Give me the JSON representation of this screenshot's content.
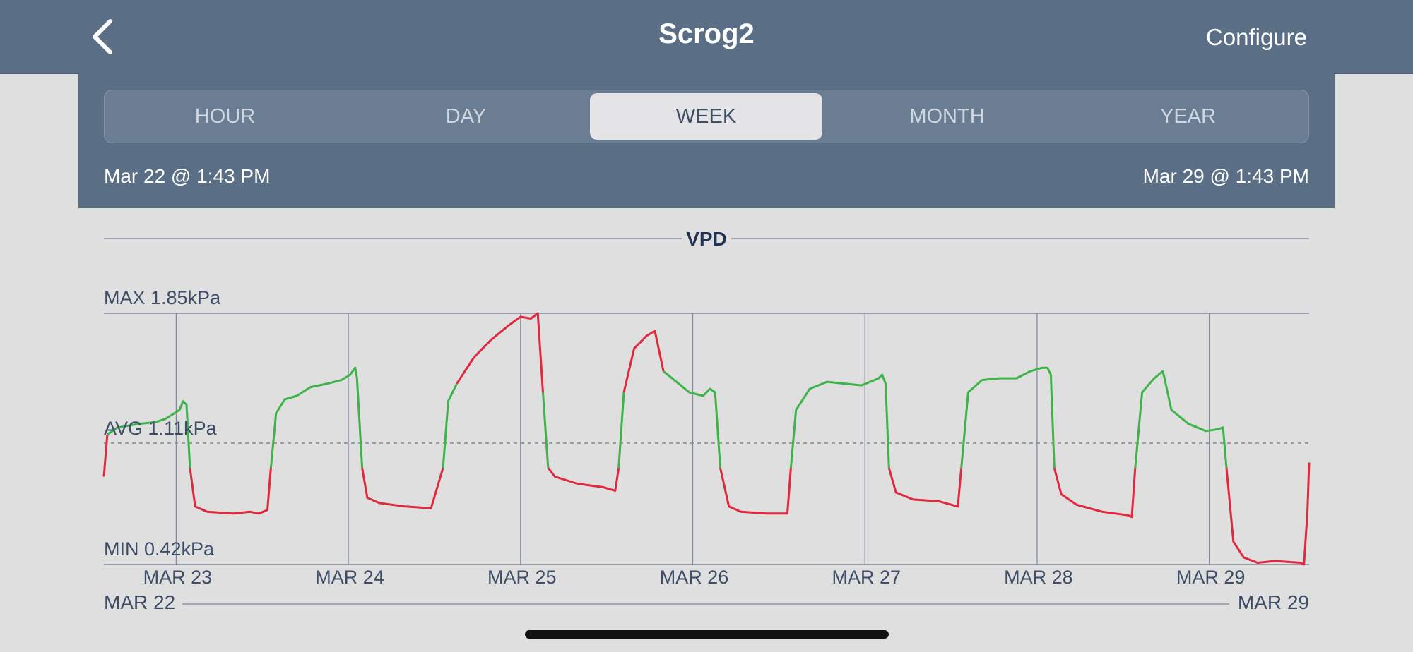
{
  "header": {
    "title": "Scrog2",
    "configure_label": "Configure"
  },
  "tabs": [
    {
      "label": "HOUR",
      "selected": false
    },
    {
      "label": "DAY",
      "selected": false
    },
    {
      "label": "WEEK",
      "selected": true
    },
    {
      "label": "MONTH",
      "selected": false
    },
    {
      "label": "YEAR",
      "selected": false
    }
  ],
  "range": {
    "start": "Mar 22 @ 1:43 PM",
    "end": "Mar 29 @ 1:43 PM"
  },
  "colors": {
    "header_bg": "#5a6e85",
    "in_range": "#3db34a",
    "out_of_range": "#e0283e"
  },
  "chart_data": {
    "type": "line",
    "title": "VPD",
    "max_label": "MAX 1.85kPa",
    "avg_label": "AVG 1.11kPa",
    "min_label": "MIN 0.42kPa",
    "ylim": [
      0.42,
      1.85
    ],
    "avg": 1.11,
    "green_band": [
      0.97,
      1.55
    ],
    "x_ticks": [
      "MAR 23",
      "MAR 24",
      "MAR 25",
      "MAR 26",
      "MAR 27",
      "MAR 28",
      "MAR 29"
    ],
    "range_start_label": "MAR 22",
    "range_end_label": "MAR 29",
    "x_range_days": [
      0,
      7
    ],
    "series": [
      {
        "points": [
          [
            0.0,
            0.92
          ],
          [
            0.02,
            1.16
          ],
          [
            0.08,
            1.2
          ],
          [
            0.2,
            1.22
          ],
          [
            0.3,
            1.23
          ],
          [
            0.36,
            1.25
          ],
          [
            0.44,
            1.3
          ],
          [
            0.46,
            1.35
          ],
          [
            0.48,
            1.33
          ],
          [
            0.5,
            0.97
          ],
          [
            0.53,
            0.75
          ],
          [
            0.6,
            0.72
          ],
          [
            0.75,
            0.71
          ],
          [
            0.85,
            0.72
          ],
          [
            0.9,
            0.71
          ],
          [
            0.95,
            0.73
          ],
          [
            0.97,
            0.97
          ],
          [
            1.0,
            1.28
          ],
          [
            1.05,
            1.36
          ],
          [
            1.12,
            1.38
          ],
          [
            1.2,
            1.43
          ],
          [
            1.3,
            1.45
          ],
          [
            1.38,
            1.47
          ],
          [
            1.43,
            1.5
          ],
          [
            1.46,
            1.54
          ],
          [
            1.47,
            1.48
          ],
          [
            1.5,
            0.97
          ],
          [
            1.53,
            0.8
          ],
          [
            1.6,
            0.77
          ],
          [
            1.75,
            0.75
          ],
          [
            1.9,
            0.74
          ],
          [
            1.97,
            0.97
          ],
          [
            2.0,
            1.35
          ],
          [
            2.05,
            1.45
          ],
          [
            2.15,
            1.6
          ],
          [
            2.25,
            1.7
          ],
          [
            2.35,
            1.78
          ],
          [
            2.42,
            1.83
          ],
          [
            2.48,
            1.82
          ],
          [
            2.52,
            1.85
          ],
          [
            2.55,
            1.4
          ],
          [
            2.58,
            0.97
          ],
          [
            2.62,
            0.92
          ],
          [
            2.75,
            0.88
          ],
          [
            2.9,
            0.86
          ],
          [
            2.97,
            0.84
          ],
          [
            2.99,
            0.97
          ],
          [
            3.02,
            1.4
          ],
          [
            3.08,
            1.65
          ],
          [
            3.15,
            1.72
          ],
          [
            3.2,
            1.75
          ],
          [
            3.25,
            1.52
          ],
          [
            3.3,
            1.48
          ],
          [
            3.4,
            1.4
          ],
          [
            3.48,
            1.38
          ],
          [
            3.52,
            1.42
          ],
          [
            3.55,
            1.4
          ],
          [
            3.58,
            0.97
          ],
          [
            3.63,
            0.75
          ],
          [
            3.7,
            0.72
          ],
          [
            3.85,
            0.71
          ],
          [
            3.97,
            0.71
          ],
          [
            3.99,
            0.97
          ],
          [
            4.02,
            1.3
          ],
          [
            4.1,
            1.42
          ],
          [
            4.2,
            1.46
          ],
          [
            4.3,
            1.45
          ],
          [
            4.4,
            1.44
          ],
          [
            4.5,
            1.48
          ],
          [
            4.52,
            1.5
          ],
          [
            4.54,
            1.45
          ],
          [
            4.56,
            0.97
          ],
          [
            4.6,
            0.83
          ],
          [
            4.7,
            0.79
          ],
          [
            4.85,
            0.78
          ],
          [
            4.96,
            0.75
          ],
          [
            4.98,
            0.97
          ],
          [
            5.02,
            1.4
          ],
          [
            5.1,
            1.47
          ],
          [
            5.2,
            1.48
          ],
          [
            5.3,
            1.48
          ],
          [
            5.38,
            1.52
          ],
          [
            5.45,
            1.54
          ],
          [
            5.48,
            1.54
          ],
          [
            5.5,
            1.5
          ],
          [
            5.52,
            0.97
          ],
          [
            5.56,
            0.82
          ],
          [
            5.65,
            0.76
          ],
          [
            5.8,
            0.72
          ],
          [
            5.95,
            0.7
          ],
          [
            5.97,
            0.69
          ],
          [
            5.99,
            0.97
          ],
          [
            6.03,
            1.4
          ],
          [
            6.1,
            1.48
          ],
          [
            6.15,
            1.52
          ],
          [
            6.16,
            1.48
          ],
          [
            6.2,
            1.3
          ],
          [
            6.3,
            1.22
          ],
          [
            6.4,
            1.18
          ],
          [
            6.47,
            1.19
          ],
          [
            6.5,
            1.2
          ],
          [
            6.52,
            0.97
          ],
          [
            6.56,
            0.55
          ],
          [
            6.62,
            0.46
          ],
          [
            6.7,
            0.43
          ],
          [
            6.8,
            0.44
          ],
          [
            6.95,
            0.43
          ],
          [
            6.97,
            0.42
          ],
          [
            6.99,
            0.72
          ],
          [
            7.0,
            1.0
          ]
        ]
      }
    ]
  }
}
